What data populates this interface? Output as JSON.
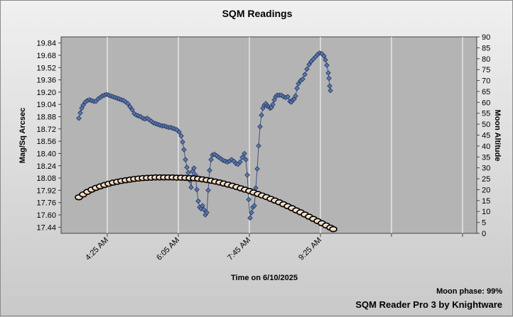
{
  "chart_data": {
    "type": "scatter",
    "title": "SQM Readings",
    "xlabel": "Time on 6/10/2025",
    "ylabel": "Mag/Sq Arcsec",
    "y2label": "Moon Altitude",
    "footer_moon_phase": "Moon phase: 99%",
    "footer_credit": "SQM Reader Pro 3 by Knightware",
    "grid": true,
    "x_range_minutes": [
      200,
      785
    ],
    "x_tick_minutes": [
      265,
      365,
      465,
      565,
      665,
      765
    ],
    "x_tick_labels": [
      "4:25 AM",
      "6:05 AM",
      "7:45 AM",
      "9:25 AM",
      "",
      ""
    ],
    "ylim": [
      17.36,
      19.92
    ],
    "yticks": [
      "17.44",
      "17.60",
      "17.76",
      "17.92",
      "18.08",
      "18.24",
      "18.40",
      "18.56",
      "18.72",
      "18.88",
      "19.04",
      "19.20",
      "19.36",
      "19.52",
      "19.68",
      "19.84"
    ],
    "y2lim": [
      0,
      90
    ],
    "y2ticks": [
      "0",
      "5",
      "10",
      "15",
      "20",
      "25",
      "30",
      "35",
      "40",
      "45",
      "50",
      "55",
      "60",
      "65",
      "70",
      "75",
      "80",
      "85",
      "90"
    ],
    "series": [
      {
        "type": "sqm",
        "color": "#5b78b0",
        "marker": "diamond",
        "points": [
          [
            225,
            18.86
          ],
          [
            227,
            18.93
          ],
          [
            229,
            18.99
          ],
          [
            231,
            19.03
          ],
          [
            234,
            19.07
          ],
          [
            237,
            19.09
          ],
          [
            240,
            19.1
          ],
          [
            243,
            19.09
          ],
          [
            246,
            19.08
          ],
          [
            249,
            19.08
          ],
          [
            252,
            19.11
          ],
          [
            255,
            19.13
          ],
          [
            258,
            19.15
          ],
          [
            261,
            19.16
          ],
          [
            264,
            19.17
          ],
          [
            267,
            19.16
          ],
          [
            270,
            19.15
          ],
          [
            273,
            19.14
          ],
          [
            276,
            19.13
          ],
          [
            279,
            19.12
          ],
          [
            282,
            19.11
          ],
          [
            285,
            19.1
          ],
          [
            288,
            19.09
          ],
          [
            291,
            19.07
          ],
          [
            294,
            19.05
          ],
          [
            297,
            19.01
          ],
          [
            300,
            18.97
          ],
          [
            303,
            18.92
          ],
          [
            306,
            18.9
          ],
          [
            309,
            18.89
          ],
          [
            312,
            18.88
          ],
          [
            315,
            18.86
          ],
          [
            318,
            18.85
          ],
          [
            321,
            18.86
          ],
          [
            324,
            18.84
          ],
          [
            327,
            18.82
          ],
          [
            330,
            18.8
          ],
          [
            333,
            18.79
          ],
          [
            336,
            18.78
          ],
          [
            339,
            18.77
          ],
          [
            342,
            18.76
          ],
          [
            345,
            18.76
          ],
          [
            348,
            18.75
          ],
          [
            351,
            18.74
          ],
          [
            354,
            18.74
          ],
          [
            357,
            18.73
          ],
          [
            360,
            18.72
          ],
          [
            363,
            18.71
          ],
          [
            366,
            18.68
          ],
          [
            369,
            18.63
          ],
          [
            371,
            18.55
          ],
          [
            373,
            18.45
          ],
          [
            375,
            18.32
          ],
          [
            377,
            18.22
          ],
          [
            379,
            18.15
          ],
          [
            381,
            18.05
          ],
          [
            383,
            17.96
          ],
          [
            385,
            18.17
          ],
          [
            387,
            18.21
          ],
          [
            389,
            18.12
          ],
          [
            391,
            17.93
          ],
          [
            393,
            17.78
          ],
          [
            395,
            17.7
          ],
          [
            397,
            17.68
          ],
          [
            399,
            17.72
          ],
          [
            401,
            17.67
          ],
          [
            403,
            17.6
          ],
          [
            405,
            17.63
          ],
          [
            407,
            17.92
          ],
          [
            409,
            18.18
          ],
          [
            411,
            18.32
          ],
          [
            413,
            18.38
          ],
          [
            416,
            18.39
          ],
          [
            419,
            18.37
          ],
          [
            422,
            18.35
          ],
          [
            425,
            18.33
          ],
          [
            428,
            18.31
          ],
          [
            431,
            18.3
          ],
          [
            434,
            18.29
          ],
          [
            437,
            18.3
          ],
          [
            440,
            18.32
          ],
          [
            443,
            18.3
          ],
          [
            446,
            18.27
          ],
          [
            449,
            18.26
          ],
          [
            452,
            18.29
          ],
          [
            455,
            18.35
          ],
          [
            458,
            18.4
          ],
          [
            460,
            18.32
          ],
          [
            462,
            18.12
          ],
          [
            464,
            17.8
          ],
          [
            466,
            17.56
          ],
          [
            468,
            17.63
          ],
          [
            470,
            17.7
          ],
          [
            472,
            17.72
          ],
          [
            474,
            17.95
          ],
          [
            476,
            18.2
          ],
          [
            478,
            18.5
          ],
          [
            480,
            18.75
          ],
          [
            482,
            18.9
          ],
          [
            484,
            18.99
          ],
          [
            486,
            19.03
          ],
          [
            488,
            19.05
          ],
          [
            490,
            19.02
          ],
          [
            492,
            19.01
          ],
          [
            494,
            18.99
          ],
          [
            496,
            19.0
          ],
          [
            498,
            19.04
          ],
          [
            500,
            19.1
          ],
          [
            502,
            19.14
          ],
          [
            504,
            19.16
          ],
          [
            507,
            19.16
          ],
          [
            510,
            19.16
          ],
          [
            513,
            19.14
          ],
          [
            516,
            19.13
          ],
          [
            519,
            19.14
          ],
          [
            522,
            19.08
          ],
          [
            524,
            19.07
          ],
          [
            526,
            19.1
          ],
          [
            528,
            19.11
          ],
          [
            530,
            19.15
          ],
          [
            532,
            19.25
          ],
          [
            534,
            19.31
          ],
          [
            537,
            19.35
          ],
          [
            540,
            19.37
          ],
          [
            543,
            19.43
          ],
          [
            546,
            19.5
          ],
          [
            549,
            19.56
          ],
          [
            552,
            19.6
          ],
          [
            555,
            19.63
          ],
          [
            558,
            19.66
          ],
          [
            561,
            19.69
          ],
          [
            564,
            19.71
          ],
          [
            567,
            19.7
          ],
          [
            570,
            19.67
          ],
          [
            572,
            19.62
          ],
          [
            574,
            19.55
          ],
          [
            576,
            19.45
          ],
          [
            577,
            19.38
          ],
          [
            578,
            19.28
          ],
          [
            579,
            19.22
          ]
        ]
      },
      {
        "type": "moon",
        "color": "#f0e0c8",
        "marker": "circle",
        "points": [
          [
            225,
            16.5
          ],
          [
            231,
            17.8
          ],
          [
            237,
            19.0
          ],
          [
            243,
            20.0
          ],
          [
            249,
            20.8
          ],
          [
            255,
            21.5
          ],
          [
            261,
            22.1
          ],
          [
            267,
            22.7
          ],
          [
            273,
            23.2
          ],
          [
            279,
            23.6
          ],
          [
            285,
            24.0
          ],
          [
            291,
            24.3
          ],
          [
            297,
            24.6
          ],
          [
            303,
            24.9
          ],
          [
            309,
            25.1
          ],
          [
            315,
            25.3
          ],
          [
            321,
            25.4
          ],
          [
            327,
            25.5
          ],
          [
            333,
            25.6
          ],
          [
            339,
            25.6
          ],
          [
            345,
            25.6
          ],
          [
            351,
            25.6
          ],
          [
            357,
            25.6
          ],
          [
            363,
            25.5
          ],
          [
            369,
            25.5
          ],
          [
            375,
            25.4
          ],
          [
            381,
            25.3
          ],
          [
            387,
            25.2
          ],
          [
            393,
            25.0
          ],
          [
            399,
            24.7
          ],
          [
            405,
            24.4
          ],
          [
            411,
            24.1
          ],
          [
            417,
            23.7
          ],
          [
            423,
            23.3
          ],
          [
            429,
            22.8
          ],
          [
            435,
            22.3
          ],
          [
            441,
            21.8
          ],
          [
            447,
            21.2
          ],
          [
            453,
            20.6
          ],
          [
            459,
            20.0
          ],
          [
            465,
            19.4
          ],
          [
            471,
            18.7
          ],
          [
            477,
            18.0
          ],
          [
            483,
            17.3
          ],
          [
            489,
            16.6
          ],
          [
            495,
            15.8
          ],
          [
            501,
            15.0
          ],
          [
            507,
            14.2
          ],
          [
            513,
            13.3
          ],
          [
            519,
            12.4
          ],
          [
            525,
            11.5
          ],
          [
            531,
            10.5
          ],
          [
            537,
            9.6
          ],
          [
            543,
            8.6
          ],
          [
            549,
            7.6
          ],
          [
            555,
            6.6
          ],
          [
            561,
            5.6
          ],
          [
            567,
            4.6
          ],
          [
            573,
            3.6
          ],
          [
            579,
            2.6
          ],
          [
            583,
            1.9
          ]
        ]
      }
    ]
  }
}
